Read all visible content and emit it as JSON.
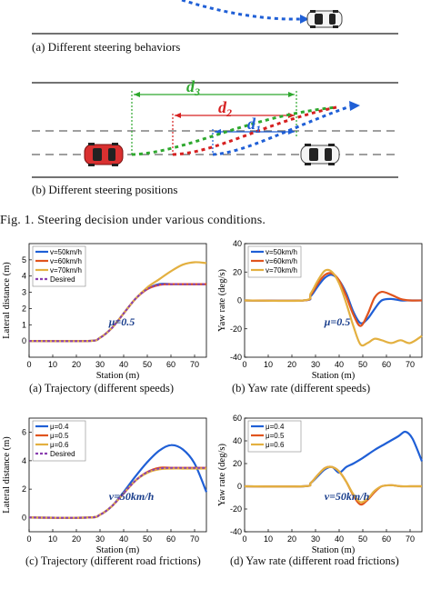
{
  "top_figure": {
    "caption_a": "(a) Different steering behaviors",
    "caption_b": "(b) Different steering positions",
    "labels": {
      "d1": "d",
      "d1_sub": "1",
      "d2": "d",
      "d2_sub": "2",
      "d3": "d",
      "d3_sub": "3"
    },
    "colors": {
      "d1": "#1f5fd6",
      "d2": "#d62020",
      "d3": "#2ea82e",
      "ego_car": "#d93030"
    }
  },
  "figure_caption": "Fig. 1.   Steering decision under various conditions.",
  "subplots": [
    {
      "caption": "(a) Trajectory (different speeds)",
      "annotation": "μ=0.5",
      "chart_data": {
        "type": "line",
        "xlabel": "Station (m)",
        "ylabel": "Lateral distance (m)",
        "xlim": [
          0,
          75
        ],
        "ylim": [
          -1,
          6
        ],
        "xticks": [
          "0",
          "10",
          "20",
          "30",
          "40",
          "50",
          "60",
          "70"
        ],
        "yticks": [
          "0",
          "1",
          "2",
          "3",
          "4",
          "5"
        ],
        "legend": "top-left",
        "series": [
          {
            "name": "v=50km/h",
            "color": "#1f5fd6",
            "dashed": false,
            "x": [
              0,
              25,
              30,
              35,
              40,
              45,
              50,
              55,
              60,
              65,
              70,
              75
            ],
            "y": [
              0,
              0,
              0.2,
              0.8,
              1.7,
              2.6,
              3.2,
              3.5,
              3.5,
              3.5,
              3.5,
              3.5
            ]
          },
          {
            "name": "v=60km/h",
            "color": "#e0541e",
            "dashed": false,
            "x": [
              0,
              25,
              30,
              35,
              40,
              45,
              50,
              55,
              60,
              65,
              70,
              75
            ],
            "y": [
              0,
              0,
              0.2,
              0.8,
              1.7,
              2.6,
              3.2,
              3.45,
              3.5,
              3.5,
              3.5,
              3.5
            ]
          },
          {
            "name": "v=70km/h",
            "color": "#e3b040",
            "dashed": false,
            "x": [
              0,
              25,
              30,
              35,
              40,
              45,
              50,
              55,
              60,
              65,
              70,
              75
            ],
            "y": [
              0,
              0,
              0.2,
              0.8,
              1.7,
              2.6,
              3.3,
              3.8,
              4.3,
              4.7,
              4.85,
              4.8
            ]
          },
          {
            "name": "Desired",
            "color": "#8a3fb0",
            "dashed": true,
            "x": [
              0,
              25,
              30,
              35,
              40,
              45,
              50,
              55,
              60,
              65,
              70,
              75
            ],
            "y": [
              0,
              0,
              0.2,
              0.8,
              1.7,
              2.6,
              3.2,
              3.45,
              3.5,
              3.5,
              3.5,
              3.5
            ]
          }
        ]
      }
    },
    {
      "caption": "(b) Yaw rate (different speeds)",
      "annotation": "μ=0.5",
      "chart_data": {
        "type": "line",
        "xlabel": "Station (m)",
        "ylabel": "Yaw rate (deg/s)",
        "xlim": [
          0,
          75
        ],
        "ylim": [
          -40,
          40
        ],
        "xticks": [
          "0",
          "10",
          "20",
          "30",
          "40",
          "50",
          "60",
          "70"
        ],
        "yticks": [
          "-40",
          "-20",
          "0",
          "20",
          "40"
        ],
        "legend": "top-left",
        "series": [
          {
            "name": "v=50km/h",
            "color": "#1f5fd6",
            "dashed": false,
            "x": [
              0,
              25,
              28,
              31,
              34,
              37,
              40,
              43,
              46,
              49,
              52,
              55,
              58,
              62,
              66,
              70,
              75
            ],
            "y": [
              0,
              0,
              3,
              10,
              16,
              18,
              14,
              5,
              -8,
              -16,
              -13,
              -6,
              0,
              1,
              0,
              0,
              0
            ]
          },
          {
            "name": "v=60km/h",
            "color": "#e0541e",
            "dashed": false,
            "x": [
              0,
              25,
              28,
              31,
              34,
              37,
              40,
              43,
              46,
              49,
              52,
              55,
              58,
              62,
              66,
              70,
              75
            ],
            "y": [
              0,
              0,
              4,
              12,
              18,
              19,
              14,
              3,
              -10,
              -18,
              -10,
              2,
              6,
              4,
              1,
              0,
              0
            ]
          },
          {
            "name": "v=70km/h",
            "color": "#e3b040",
            "dashed": false,
            "x": [
              0,
              25,
              28,
              31,
              34,
              37,
              40,
              43,
              46,
              49,
              52,
              55,
              58,
              62,
              66,
              70,
              75
            ],
            "y": [
              0,
              0,
              5,
              14,
              21,
              20,
              12,
              -2,
              -18,
              -31,
              -30,
              -27,
              -28,
              -30,
              -28,
              -30,
              -25
            ]
          }
        ]
      }
    },
    {
      "caption": "(c) Trajectory (different road frictions)",
      "annotation": "v=50km/h",
      "chart_data": {
        "type": "line",
        "xlabel": "Station (m)",
        "ylabel": "Lateral distance (m)",
        "xlim": [
          0,
          75
        ],
        "ylim": [
          -1,
          7
        ],
        "xticks": [
          "0",
          "10",
          "20",
          "30",
          "40",
          "50",
          "60",
          "70"
        ],
        "yticks": [
          "0",
          "2",
          "4",
          "6"
        ],
        "legend": "top-left",
        "series": [
          {
            "name": "μ=0.4",
            "color": "#1f5fd6",
            "dashed": false,
            "x": [
              0,
              25,
              30,
              35,
              40,
              45,
              50,
              55,
              60,
              65,
              70,
              75
            ],
            "y": [
              0,
              0,
              0.2,
              0.8,
              1.8,
              2.9,
              3.9,
              4.7,
              5.1,
              4.8,
              3.8,
              1.8
            ]
          },
          {
            "name": "μ=0.5",
            "color": "#e0541e",
            "dashed": false,
            "x": [
              0,
              25,
              30,
              35,
              40,
              45,
              50,
              55,
              60,
              65,
              70,
              75
            ],
            "y": [
              0,
              0,
              0.2,
              0.8,
              1.7,
              2.6,
              3.2,
              3.5,
              3.5,
              3.5,
              3.5,
              3.5
            ]
          },
          {
            "name": "μ=0.6",
            "color": "#e3b040",
            "dashed": false,
            "x": [
              0,
              25,
              30,
              35,
              40,
              45,
              50,
              55,
              60,
              65,
              70,
              75
            ],
            "y": [
              0,
              0,
              0.2,
              0.8,
              1.7,
              2.6,
              3.15,
              3.4,
              3.45,
              3.45,
              3.45,
              3.45
            ]
          },
          {
            "name": "Desired",
            "color": "#8a3fb0",
            "dashed": true,
            "x": [
              0,
              25,
              30,
              35,
              40,
              45,
              50,
              55,
              60,
              65,
              70,
              75
            ],
            "y": [
              0,
              0,
              0.2,
              0.8,
              1.7,
              2.6,
              3.2,
              3.45,
              3.5,
              3.5,
              3.5,
              3.5
            ]
          }
        ]
      }
    },
    {
      "caption": "(d) Yaw rate (different road frictions)",
      "annotation": "v=50km/h",
      "chart_data": {
        "type": "line",
        "xlabel": "Station (m)",
        "ylabel": "Yaw rate (deg/s)",
        "xlim": [
          0,
          75
        ],
        "ylim": [
          -40,
          60
        ],
        "xticks": [
          "0",
          "10",
          "20",
          "30",
          "40",
          "50",
          "60",
          "70"
        ],
        "yticks": [
          "-40",
          "-20",
          "0",
          "20",
          "40",
          "60"
        ],
        "legend": "top-left",
        "series": [
          {
            "name": "μ=0.4",
            "color": "#1f5fd6",
            "dashed": false,
            "x": [
              0,
              25,
              28,
              31,
              34,
              37,
              40,
              43,
              46,
              50,
              55,
              60,
              65,
              68,
              71,
              75
            ],
            "y": [
              0,
              0,
              3,
              9,
              15,
              17,
              12,
              17,
              20,
              25,
              32,
              38,
              44,
              48,
              42,
              22
            ]
          },
          {
            "name": "μ=0.5",
            "color": "#e0541e",
            "dashed": false,
            "x": [
              0,
              25,
              28,
              31,
              34,
              37,
              40,
              43,
              46,
              49,
              52,
              55,
              58,
              62,
              66,
              70,
              75
            ],
            "y": [
              0,
              0,
              3,
              10,
              16,
              17,
              13,
              4,
              -8,
              -16,
              -12,
              -5,
              0,
              1,
              0,
              0,
              0
            ]
          },
          {
            "name": "μ=0.6",
            "color": "#e3b040",
            "dashed": false,
            "x": [
              0,
              25,
              28,
              31,
              34,
              37,
              40,
              43,
              46,
              49,
              52,
              55,
              58,
              62,
              66,
              70,
              75
            ],
            "y": [
              0,
              0,
              3,
              10,
              16,
              17,
              13,
              4,
              -7,
              -14,
              -11,
              -4,
              0,
              1,
              0,
              0,
              0
            ]
          }
        ]
      }
    }
  ]
}
